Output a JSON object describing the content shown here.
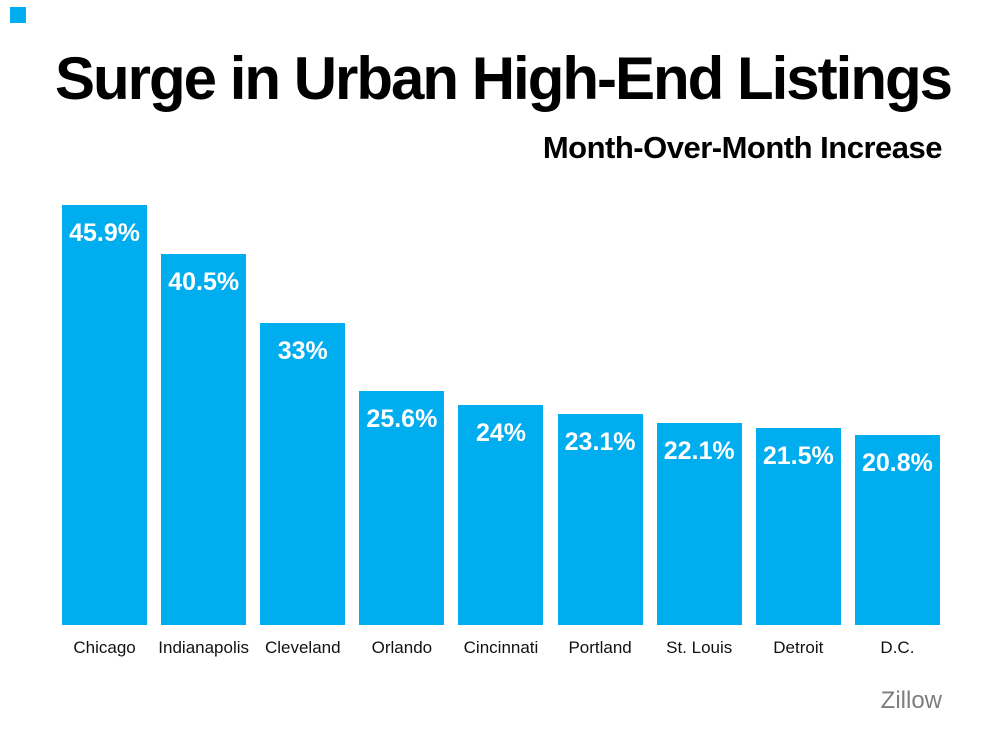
{
  "decor": {
    "corner_square_color": "#00ADEE"
  },
  "header": {
    "title": "Surge in Urban High-End Listings",
    "subtitle": "Month-Over-Month Increase"
  },
  "source": {
    "label": "Zillow",
    "color": "#7e7e7e"
  },
  "chart_data": {
    "type": "bar",
    "title": "Surge in Urban High-End Listings",
    "subtitle": "Month-Over-Month Increase",
    "categories": [
      "Chicago",
      "Indianapolis",
      "Cleveland",
      "Orlando",
      "Cincinnati",
      "Portland",
      "St. Louis",
      "Detroit",
      "D.C."
    ],
    "values": [
      45.9,
      40.5,
      33,
      25.6,
      24,
      23.1,
      22.1,
      21.5,
      20.8
    ],
    "value_labels": [
      "45.9%",
      "40.5%",
      "33%",
      "25.6%",
      "24%",
      "23.1%",
      "22.1%",
      "21.5%",
      "20.8%"
    ],
    "bar_color": "#00ADEE",
    "value_label_color": "#ffffff",
    "xlabel": "",
    "ylabel": "",
    "ylim": [
      0,
      46
    ],
    "grid": false,
    "axes_visible": false,
    "legend": false,
    "value_label_position": "inside-top",
    "source": "Zillow"
  }
}
